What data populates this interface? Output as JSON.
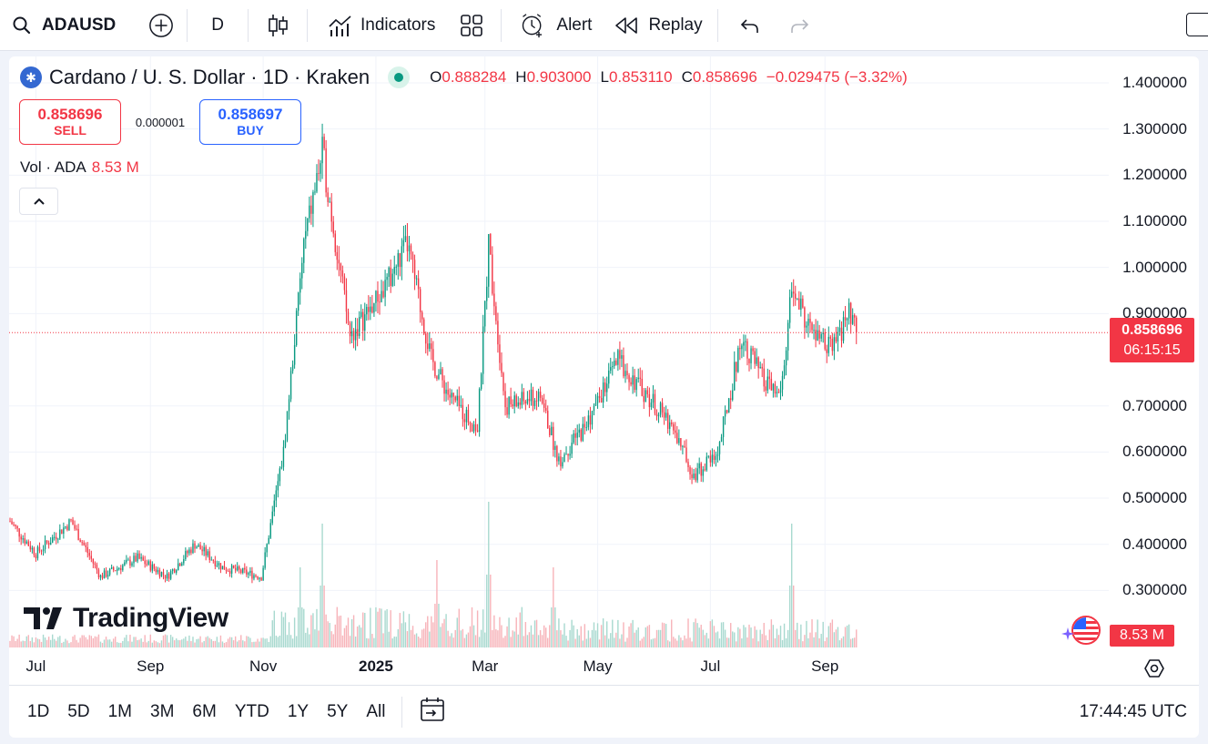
{
  "toolbar": {
    "symbol": "ADAUSD",
    "interval": "D",
    "indicators_label": "Indicators",
    "alert_label": "Alert",
    "replay_label": "Replay",
    "icons": [
      "search-icon",
      "add-symbol-icon",
      "candles-icon",
      "indicators-icon",
      "layouts-icon",
      "alert-icon",
      "replay-icon",
      "undo-icon",
      "redo-icon"
    ]
  },
  "legend": {
    "title": "Cardano / U. S. Dollar · 1D · Kraken",
    "open_label": "O",
    "open": "0.888284",
    "high_label": "H",
    "high": "0.903000",
    "low_label": "L",
    "low": "0.853110",
    "close_label": "C",
    "close": "0.858696",
    "change": "−0.029475 (−3.32%)"
  },
  "trade": {
    "sell_price": "0.858696",
    "sell_label": "SELL",
    "spread": "0.000001",
    "buy_price": "0.858697",
    "buy_label": "BUY"
  },
  "volume": {
    "label": "Vol · ADA",
    "value": "8.53 M"
  },
  "brand": "TradingView",
  "price_tag": {
    "price": "0.858696",
    "countdown": "06:15:15"
  },
  "volume_tag": "8.53 M",
  "y_axis": [
    "1.400000",
    "1.300000",
    "1.200000",
    "1.100000",
    "1.000000",
    "0.900000",
    "0.700000",
    "0.600000",
    "0.500000",
    "0.400000",
    "0.300000"
  ],
  "x_axis": [
    "Jul",
    "Sep",
    "Nov",
    "2025",
    "Mar",
    "May",
    "Jul",
    "Sep"
  ],
  "ranges": [
    "1D",
    "5D",
    "1M",
    "3M",
    "6M",
    "YTD",
    "1Y",
    "5Y",
    "All"
  ],
  "clock": "17:44:45 UTC",
  "colors": {
    "up": "#089981",
    "down": "#f23645",
    "accent": "#2962ff"
  },
  "chart_data": {
    "type": "candlestick",
    "y_range": [
      0.25,
      1.45
    ],
    "current_price": 0.858696,
    "close_path": [
      [
        "2024-06-17",
        0.45
      ],
      [
        "2024-07-01",
        0.38
      ],
      [
        "2024-07-20",
        0.45
      ],
      [
        "2024-08-05",
        0.33
      ],
      [
        "2024-08-25",
        0.37
      ],
      [
        "2024-09-10",
        0.33
      ],
      [
        "2024-09-25",
        0.4
      ],
      [
        "2024-10-10",
        0.35
      ],
      [
        "2024-10-31",
        0.33
      ],
      [
        "2024-11-12",
        0.6
      ],
      [
        "2024-11-23",
        1.05
      ],
      [
        "2024-12-03",
        1.25
      ],
      [
        "2024-12-18",
        0.85
      ],
      [
        "2025-01-05",
        0.95
      ],
      [
        "2025-01-18",
        1.05
      ],
      [
        "2025-01-31",
        0.8
      ],
      [
        "2025-02-10",
        0.72
      ],
      [
        "2025-02-25",
        0.65
      ],
      [
        "2025-03-03",
        1.05
      ],
      [
        "2025-03-12",
        0.7
      ],
      [
        "2025-03-31",
        0.72
      ],
      [
        "2025-04-10",
        0.58
      ],
      [
        "2025-04-25",
        0.66
      ],
      [
        "2025-05-12",
        0.8
      ],
      [
        "2025-05-28",
        0.72
      ],
      [
        "2025-06-10",
        0.66
      ],
      [
        "2025-06-22",
        0.55
      ],
      [
        "2025-07-05",
        0.6
      ],
      [
        "2025-07-18",
        0.85
      ],
      [
        "2025-07-30",
        0.75
      ],
      [
        "2025-08-08",
        0.72
      ],
      [
        "2025-08-14",
        0.95
      ],
      [
        "2025-08-25",
        0.86
      ],
      [
        "2025-09-05",
        0.82
      ],
      [
        "2025-09-14",
        0.9
      ],
      [
        "2025-09-18",
        0.86
      ]
    ],
    "volume_spikes": [
      [
        "2024-11-21",
        0.55
      ],
      [
        "2024-12-03",
        0.85
      ],
      [
        "2025-02-03",
        0.6
      ],
      [
        "2025-03-03",
        1.0
      ],
      [
        "2025-04-07",
        0.55
      ],
      [
        "2025-08-14",
        0.85
      ]
    ]
  }
}
